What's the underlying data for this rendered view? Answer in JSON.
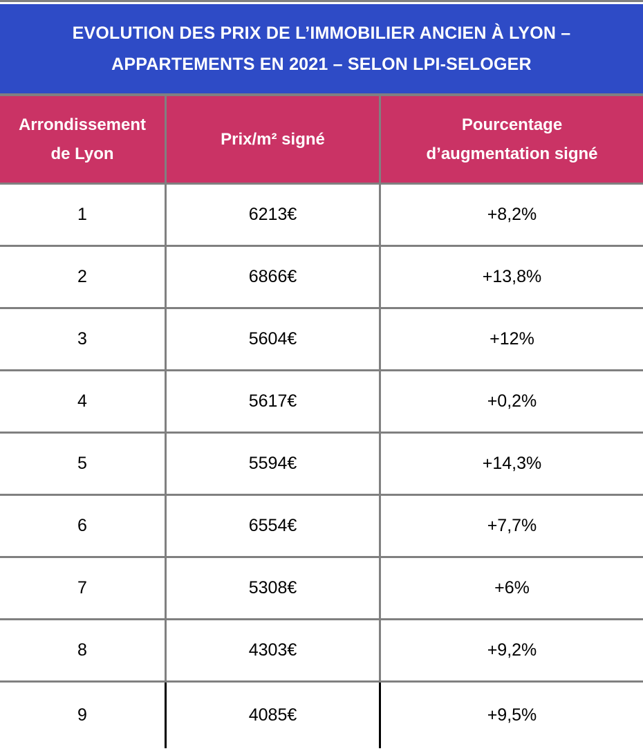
{
  "title": {
    "line1": "EVOLUTION DES PRIX DE L’IMMOBILIER ANCIEN À LYON –",
    "line2": "APPARTEMENTS EN 2021 – SELON LPI-SELOGER"
  },
  "header": {
    "col1_line1": "Arrondissement",
    "col1_line2": "de Lyon",
    "col2_line1": "Prix/m² signé",
    "col3_line1": "Pourcentage",
    "col3_line2": "d’augmentation signé"
  },
  "rows": [
    {
      "arr": "1",
      "prix": "6213€",
      "pct": "+8,2%"
    },
    {
      "arr": "2",
      "prix": "6866€",
      "pct": "+13,8%"
    },
    {
      "arr": "3",
      "prix": "5604€",
      "pct": "+12%"
    },
    {
      "arr": "4",
      "prix": "5617€",
      "pct": "+0,2%"
    },
    {
      "arr": "5",
      "prix": "5594€",
      "pct": "+14,3%"
    },
    {
      "arr": "6",
      "prix": "6554€",
      "pct": "+7,7%"
    },
    {
      "arr": "7",
      "prix": "5308€",
      "pct": "+6%"
    },
    {
      "arr": "8",
      "prix": "4303€",
      "pct": "+9,2%"
    },
    {
      "arr": "9",
      "prix": "4085€",
      "pct": "+9,5%"
    }
  ],
  "colors": {
    "title_bg": "#2E4BC6",
    "header_bg": "#CA3365",
    "grid_border": "#808080",
    "last_row_separator": "#000000",
    "title_text": "#ffffff",
    "header_text": "#ffffff",
    "cell_text": "#000000"
  },
  "chart_data": {
    "type": "table",
    "title": "EVOLUTION DES PRIX DE L’IMMOBILIER ANCIEN À LYON – APPARTEMENTS EN 2021 – SELON LPI-SELOGER",
    "columns": [
      "Arrondissement de Lyon",
      "Prix/m² signé",
      "Pourcentage d’augmentation signé"
    ],
    "rows": [
      [
        "1",
        "6213€",
        "+8,2%"
      ],
      [
        "2",
        "6866€",
        "+13,8%"
      ],
      [
        "3",
        "5604€",
        "+12%"
      ],
      [
        "4",
        "5617€",
        "+0,2%"
      ],
      [
        "5",
        "5594€",
        "+14,3%"
      ],
      [
        "6",
        "6554€",
        "+7,7%"
      ],
      [
        "7",
        "5308€",
        "+6%"
      ],
      [
        "8",
        "4303€",
        "+9,2%"
      ],
      [
        "9",
        "4085€",
        "+9,5%"
      ]
    ],
    "prix_values_eur_per_m2": [
      6213,
      6866,
      5604,
      5617,
      5594,
      6554,
      5308,
      4303,
      4085
    ],
    "augmentation_pct": [
      8.2,
      13.8,
      12,
      0.2,
      14.3,
      7.7,
      6,
      9.2,
      9.5
    ]
  }
}
